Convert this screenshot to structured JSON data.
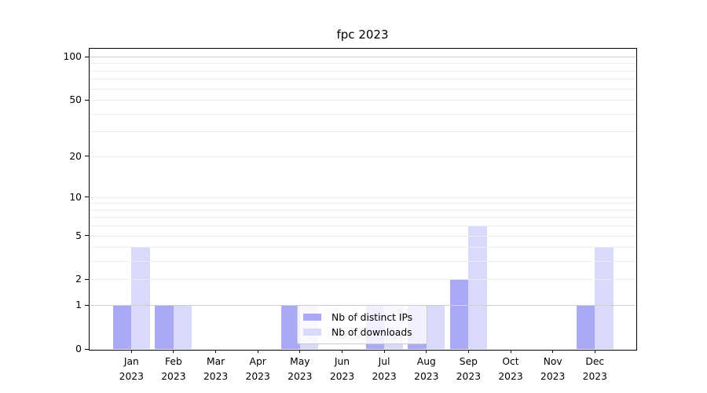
{
  "title": "fpc 2023",
  "chart_data": {
    "type": "bar",
    "title": "fpc 2023",
    "xlabel": "",
    "ylabel": "",
    "scale": "log10(1+value)",
    "grid": true,
    "legend_position": "lower center",
    "year": "2023",
    "categories": [
      "Jan",
      "Feb",
      "Mar",
      "Apr",
      "May",
      "Jun",
      "Jul",
      "Aug",
      "Sep",
      "Oct",
      "Nov",
      "Dec"
    ],
    "yticks": [
      100,
      50,
      20,
      10,
      5,
      2,
      1,
      0
    ],
    "ylim": [
      0,
      115
    ],
    "series": [
      {
        "name": "Nb of distinct IPs",
        "color": "#a9a9f6",
        "values": [
          1,
          1,
          0,
          0,
          1,
          0,
          1,
          1,
          2,
          0,
          0,
          1
        ]
      },
      {
        "name": "Nb of downloads",
        "color": "#d9d9fa",
        "values": [
          4,
          1,
          0,
          0,
          1,
          0,
          1,
          1,
          6,
          0,
          0,
          4
        ]
      }
    ],
    "gridline_color_minor": "#ededed",
    "gridline_color_major": "#cfcfcf",
    "axis_color": "#000000"
  }
}
